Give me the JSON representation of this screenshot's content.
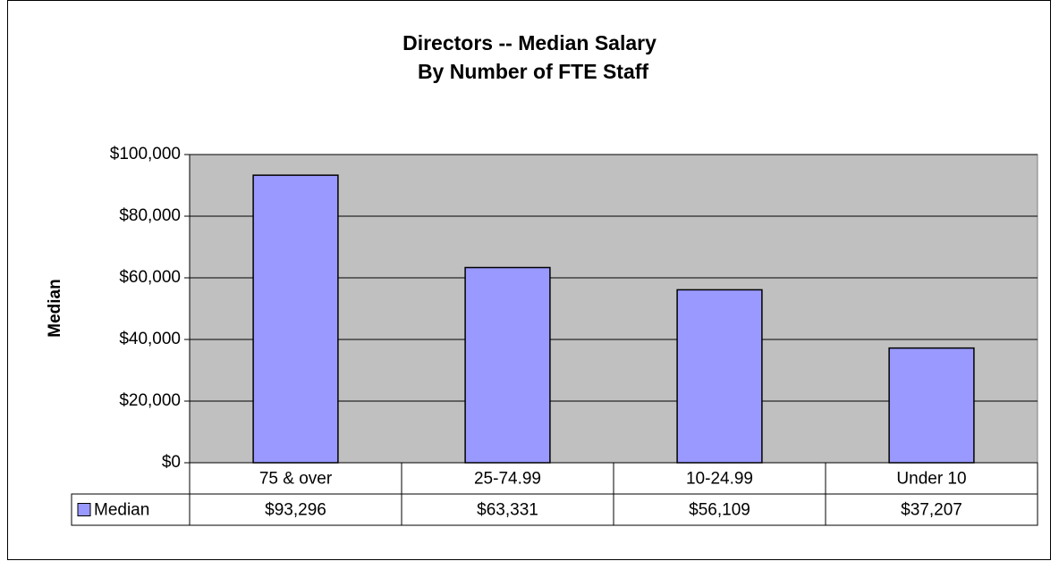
{
  "chart_data": {
    "type": "bar",
    "title": "Directors -- Median Salary",
    "subtitle": "By Number of FTE Staff",
    "y_label": "Median",
    "categories": [
      "75 & over",
      "25-74.99",
      "10-24.99",
      "Under 10"
    ],
    "series": [
      {
        "name": "Median",
        "color": "#9999ff",
        "values": [
          93296,
          63331,
          56109,
          37207
        ],
        "value_labels": [
          "$93,296",
          "$63,331",
          "$56,109",
          "$37,207"
        ]
      }
    ],
    "ylim": [
      0,
      100000
    ],
    "yticks": [
      {
        "value": 0,
        "label": "$0"
      },
      {
        "value": 20000,
        "label": "$20,000"
      },
      {
        "value": 40000,
        "label": "$40,000"
      },
      {
        "value": 60000,
        "label": "$60,000"
      },
      {
        "value": 80000,
        "label": "$80,000"
      },
      {
        "value": 100000,
        "label": "$100,000"
      }
    ],
    "grid": true,
    "plot_color": "#c0c0c0"
  }
}
